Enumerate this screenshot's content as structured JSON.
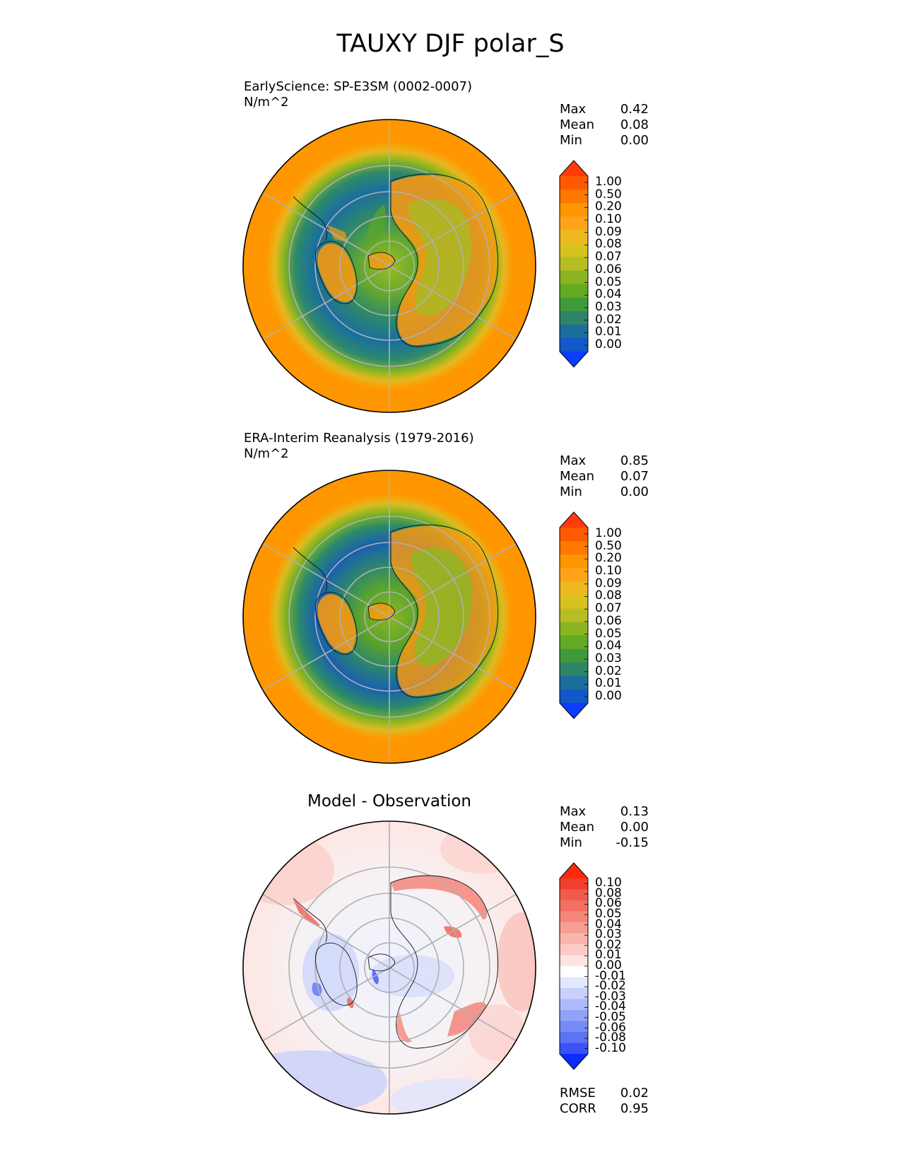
{
  "title": "TAUXY DJF polar_S",
  "panels": [
    {
      "id": "test",
      "title": "EarlyScience: SP-E3SM (0002-0007)",
      "units": "N/m^2",
      "stats": [
        {
          "label": "Max",
          "value": "0.42"
        },
        {
          "label": "Mean",
          "value": "0.08"
        },
        {
          "label": "Min",
          "value": "0.00"
        }
      ],
      "colorbar": {
        "levels": [
          "1.00",
          "0.50",
          "0.20",
          "0.10",
          "0.09",
          "0.08",
          "0.07",
          "0.06",
          "0.05",
          "0.04",
          "0.03",
          "0.02",
          "0.01",
          "0.00"
        ],
        "colors": [
          "#ff3c0a",
          "#ff5a00",
          "#ff7800",
          "#ff9600",
          "#ffa41a",
          "#f0b820",
          "#d7c21e",
          "#b7bd23",
          "#8ab521",
          "#64aa23",
          "#3f9a3a",
          "#2e8466",
          "#1a6e9a",
          "#1258c8",
          "#0b3cff"
        ]
      }
    },
    {
      "id": "reference",
      "title": "ERA-Interim Reanalysis (1979-2016)",
      "units": "N/m^2",
      "stats": [
        {
          "label": "Max",
          "value": "0.85"
        },
        {
          "label": "Mean",
          "value": "0.07"
        },
        {
          "label": "Min",
          "value": "0.00"
        }
      ],
      "colorbar": {
        "levels": [
          "1.00",
          "0.50",
          "0.20",
          "0.10",
          "0.09",
          "0.08",
          "0.07",
          "0.06",
          "0.05",
          "0.04",
          "0.03",
          "0.02",
          "0.01",
          "0.00"
        ],
        "colors": [
          "#ff3c0a",
          "#ff5a00",
          "#ff7800",
          "#ff9600",
          "#ffa41a",
          "#f0b820",
          "#d7c21e",
          "#b7bd23",
          "#8ab521",
          "#64aa23",
          "#3f9a3a",
          "#2e8466",
          "#1a6e9a",
          "#1258c8",
          "#0b3cff"
        ]
      }
    },
    {
      "id": "diff",
      "title": "Model - Observation",
      "units": "",
      "stats": [
        {
          "label": "Max",
          "value": "0.13"
        },
        {
          "label": "Mean",
          "value": "0.00"
        },
        {
          "label": "Min",
          "value": "-0.15"
        }
      ],
      "metrics": [
        {
          "label": "RMSE",
          "value": "0.02"
        },
        {
          "label": "CORR",
          "value": "0.95"
        }
      ],
      "colorbar": {
        "levels": [
          "0.10",
          "0.08",
          "0.06",
          "0.05",
          "0.04",
          "0.03",
          "0.02",
          "0.01",
          "0.00",
          "-0.01",
          "-0.02",
          "-0.03",
          "-0.04",
          "-0.05",
          "-0.06",
          "-0.08",
          "-0.10"
        ],
        "colors": [
          "#ff2a0a",
          "#f33f2e",
          "#f25a4e",
          "#f46f63",
          "#f6867a",
          "#f89d93",
          "#fab4ac",
          "#fccbc6",
          "#fee3e0",
          "#ffffff",
          "#e3e8fe",
          "#c8d1fc",
          "#adbafa",
          "#92a2f8",
          "#778bf6",
          "#5c74f4",
          "#3c52f6",
          "#0a2cff"
        ]
      }
    }
  ],
  "chart_data": [
    {
      "type": "heatmap",
      "projection": "south polar stereographic",
      "title": "EarlyScience: SP-E3SM (0002-0007)",
      "units": "N/m^2",
      "stats": {
        "max": 0.42,
        "mean": 0.08,
        "min": 0.0
      },
      "contour_levels": [
        0.0,
        0.01,
        0.02,
        0.03,
        0.04,
        0.05,
        0.06,
        0.07,
        0.08,
        0.09,
        0.1,
        0.2,
        0.5,
        1.0
      ]
    },
    {
      "type": "heatmap",
      "projection": "south polar stereographic",
      "title": "ERA-Interim Reanalysis (1979-2016)",
      "units": "N/m^2",
      "stats": {
        "max": 0.85,
        "mean": 0.07,
        "min": 0.0
      },
      "contour_levels": [
        0.0,
        0.01,
        0.02,
        0.03,
        0.04,
        0.05,
        0.06,
        0.07,
        0.08,
        0.09,
        0.1,
        0.2,
        0.5,
        1.0
      ]
    },
    {
      "type": "heatmap",
      "projection": "south polar stereographic",
      "title": "Model - Observation",
      "stats": {
        "max": 0.13,
        "mean": 0.0,
        "min": -0.15
      },
      "metrics": {
        "RMSE": 0.02,
        "CORR": 0.95
      },
      "contour_levels": [
        -0.1,
        -0.08,
        -0.06,
        -0.05,
        -0.04,
        -0.03,
        -0.02,
        -0.01,
        0.0,
        0.01,
        0.02,
        0.03,
        0.04,
        0.05,
        0.06,
        0.08,
        0.1
      ]
    }
  ]
}
